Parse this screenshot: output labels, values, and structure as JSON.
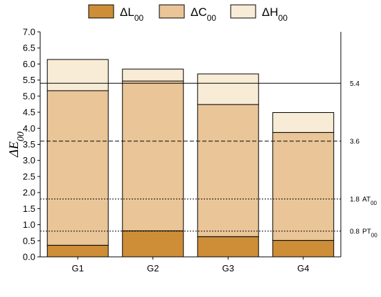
{
  "chart_data": {
    "type": "bar",
    "stacked": true,
    "ylabel": "ΔE",
    "ylabel_sub": "00",
    "xlabel": "",
    "ylim": [
      0,
      7
    ],
    "yticks": [
      "0.0",
      "0.5",
      "1.0",
      "1.5",
      "2.0",
      "2.5",
      "3.0",
      "3.5",
      "4.0",
      "4.5",
      "5.0",
      "5.5",
      "6.0",
      "6.5",
      "7.0"
    ],
    "grid": false,
    "legend_position": "top",
    "categories": [
      "G1",
      "G2",
      "G3",
      "G4"
    ],
    "series": [
      {
        "name": "ΔL",
        "sub": "00",
        "color": "#cd8e37",
        "values": [
          0.36,
          0.81,
          0.63,
          0.51
        ]
      },
      {
        "name": "ΔC",
        "sub": "00",
        "color": "#e9c597",
        "values": [
          4.81,
          4.66,
          4.11,
          3.36
        ]
      },
      {
        "name": "ΔH",
        "sub": "00",
        "color": "#f8ecd7",
        "values": [
          0.97,
          0.37,
          0.95,
          0.62
        ]
      }
    ],
    "reference_lines": [
      {
        "value": 5.4,
        "style": "solid",
        "label": "5.4",
        "tag": "",
        "tag_sub": ""
      },
      {
        "value": 3.6,
        "style": "dashed",
        "label": "3.6",
        "tag": "",
        "tag_sub": ""
      },
      {
        "value": 1.8,
        "style": "dotted",
        "label": "1.8",
        "tag": "AT",
        "tag_sub": "00"
      },
      {
        "value": 0.8,
        "style": "dotted",
        "label": "0.8",
        "tag": "PT",
        "tag_sub": "00"
      }
    ]
  }
}
